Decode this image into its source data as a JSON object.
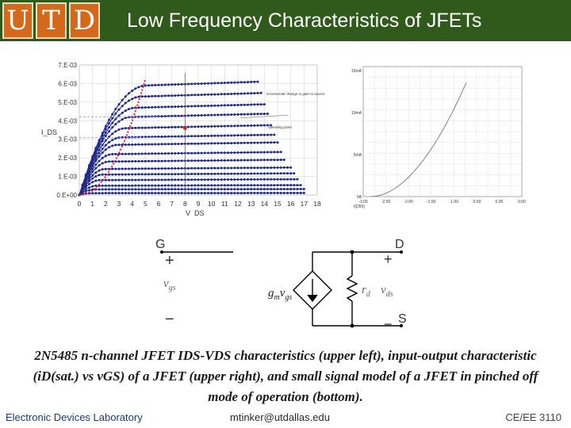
{
  "header": {
    "logo_letters": [
      "U",
      "T",
      "D"
    ],
    "title": "Low Frequency Characteristics of JFETs",
    "background_color": "#2f5a1c",
    "logo_color": "#d4691b"
  },
  "chart_data": [
    {
      "type": "line",
      "x": [
        0,
        1,
        2,
        3,
        4,
        5,
        6,
        7,
        8,
        9,
        10,
        11,
        12,
        13,
        14,
        15,
        16,
        17,
        18
      ],
      "xlabel": "V_DS",
      "ylabel": "I_DS",
      "xlim": [
        0,
        18
      ],
      "ylim": [
        0,
        0.007
      ],
      "x_ticks": [
        "0",
        "1",
        "2",
        "3",
        "4",
        "5",
        "6",
        "7",
        "8",
        "9",
        "10",
        "11",
        "12",
        "13",
        "14",
        "15",
        "16",
        "17",
        "18"
      ],
      "y_ticks": [
        "0.E+00",
        "1.E-03",
        "2.E-03",
        "3.E-03",
        "4.E-03",
        "5.E-03",
        "6.E-03",
        "7.E-03"
      ],
      "series_saturation_currents": [
        0.0059,
        0.0053,
        0.0047,
        0.0042,
        0.0036,
        0.0031,
        0.0027,
        0.0022,
        0.0018,
        0.0014,
        0.0011,
        0.0008,
        0.0005,
        0.0003,
        0.0001
      ],
      "annotations": [
        "incremental change in gate to source voltage",
        "operating point"
      ],
      "grid": true
    },
    {
      "type": "line",
      "xlabel": "V_GS",
      "x_ticks": [
        "-3.00",
        "-2.50",
        "-2.00",
        "-1.50",
        "-1.00",
        "-0.50",
        "0.00",
        "0.50"
      ],
      "y_ticks": [
        "0A",
        "5mA",
        "10mA",
        "15mA"
      ],
      "series_label": "I(D55)",
      "grid": true
    }
  ],
  "circuit": {
    "gate_label": "G",
    "drain_label": "D",
    "source_label": "S",
    "plus_sign": "+",
    "minus_sign": "−",
    "vgs_label": "v",
    "vgs_sub": "gs",
    "gm_label": "g",
    "gm_sub": "m",
    "gm_v_label": "v",
    "gm_v_sub": "gs",
    "rd_label": "r",
    "rd_sub": "d",
    "vds_label": "v",
    "vds_sub": "ds"
  },
  "caption": {
    "text": "2N5485 n-channel JFET IDS-VDS characteristics (upper left), input-output characteristic (iD(sat.) vs vGS) of a JFET (upper right), and small signal model of a JFET in pinched off mode of operation (bottom)."
  },
  "footer": {
    "left": "Electronic Devices Laboratory",
    "middle": "mtinker@utdallas.edu",
    "right": "CE/EE 3110"
  }
}
